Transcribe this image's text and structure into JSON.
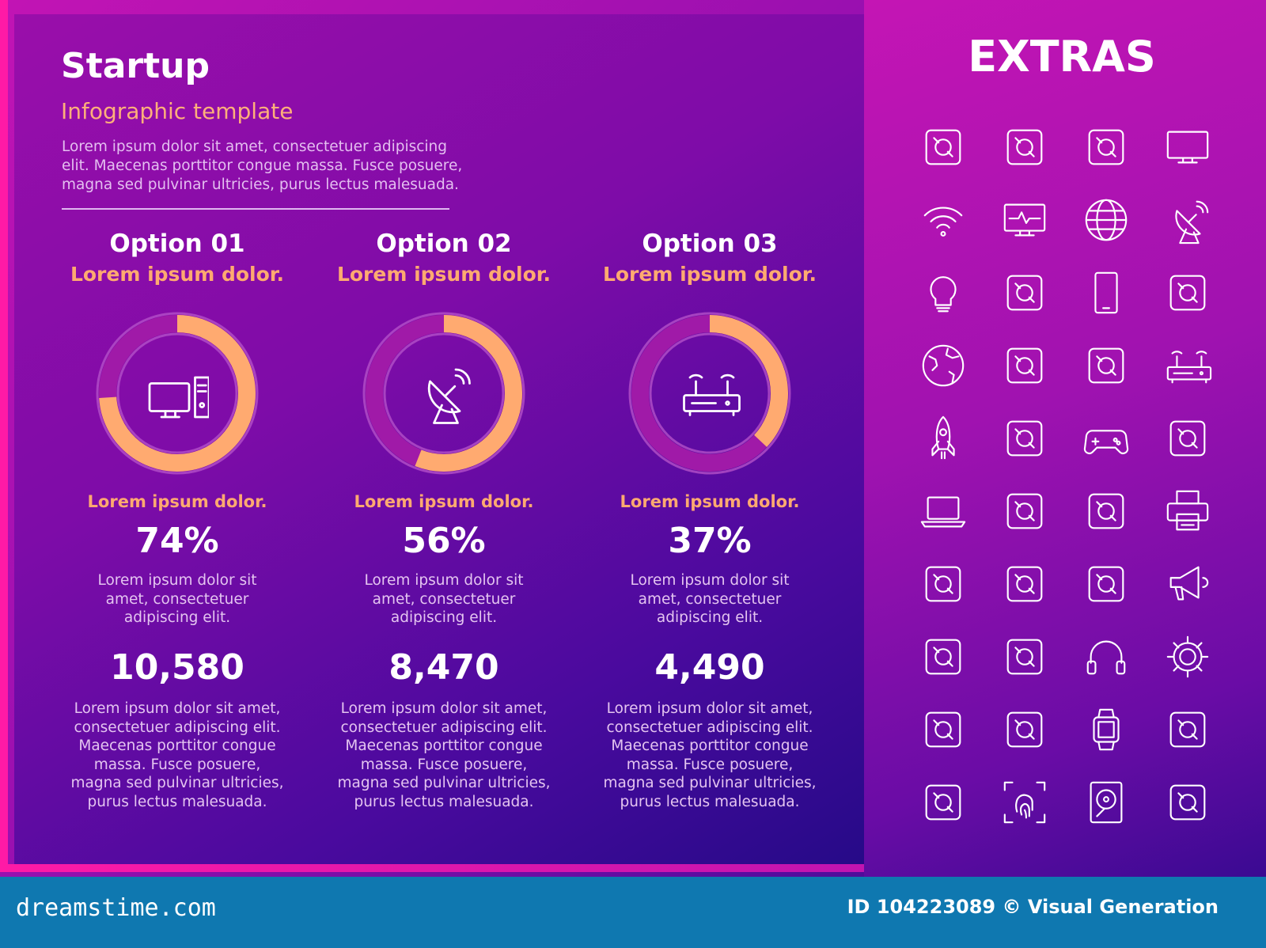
{
  "header": {
    "title": "Startup",
    "subtitle": "Infographic template",
    "intro": "Lorem ipsum dolor sit amet, consectetuer adipiscing elit. Maecenas porttitor congue massa. Fusce posuere, magna sed pulvinar ultricies, purus lectus malesuada."
  },
  "options": [
    {
      "title": "Option 01",
      "subtitle": "Lorem ipsum dolor.",
      "icon": "desktop-computer",
      "percent_value": 74,
      "label": "Lorem ipsum dolor.",
      "percent": "74%",
      "desc": "Lorem ipsum dolor sit amet, consectetuer adipiscing elit.",
      "number": "10,580",
      "paragraph": "Lorem ipsum dolor sit amet, consectetuer adipiscing elit. Maecenas porttitor congue massa. Fusce posuere, magna sed pulvinar ultricies, purus lectus malesuada."
    },
    {
      "title": "Option 02",
      "subtitle": "Lorem ipsum dolor.",
      "icon": "satellite-dish",
      "percent_value": 56,
      "label": "Lorem ipsum dolor.",
      "percent": "56%",
      "desc": "Lorem ipsum dolor sit amet, consectetuer adipiscing elit.",
      "number": "8,470",
      "paragraph": "Lorem ipsum dolor sit amet, consectetuer adipiscing elit. Maecenas porttitor congue massa. Fusce posuere, magna sed pulvinar ultricies, purus lectus malesuada."
    },
    {
      "title": "Option 03",
      "subtitle": "Lorem ipsum dolor.",
      "icon": "router",
      "percent_value": 37,
      "label": "Lorem ipsum dolor.",
      "percent": "37%",
      "desc": "Lorem ipsum dolor sit amet, consectetuer adipiscing elit.",
      "number": "4,490",
      "paragraph": "Lorem ipsum dolor sit amet, consectetuer adipiscing elit. Maecenas porttitor congue massa. Fusce posuere, magna sed pulvinar ultricies, purus lectus malesuada."
    }
  ],
  "extras": {
    "title": "EXTRAS",
    "icons": [
      "devices",
      "smartphone-wifi",
      "chip",
      "monitor",
      "wifi",
      "monitor-pulse",
      "globe-www",
      "satellite-dish",
      "lightbulb",
      "cloud-phone",
      "smartphone",
      "molecule",
      "earth",
      "phone-vibrate",
      "game-console",
      "router",
      "rocket",
      "touch-screen",
      "gamepad",
      "projector",
      "laptop",
      "device-sync",
      "satellite",
      "printer",
      "vr-user",
      "cloud-monitor",
      "rocket-launch",
      "megaphone",
      "vr-headset",
      "hand-phone",
      "headphones",
      "gear",
      "smartwatch-hand",
      "touch-phone",
      "smartwatch",
      "drone",
      "robot-hand",
      "fingerprint",
      "hard-drive",
      "3d-printer"
    ]
  },
  "colors": {
    "accent": "#ffaa70",
    "track": "#b040c0",
    "footer": "#0f78b0"
  },
  "footer": {
    "logo": "dreamstime.com",
    "credit": "ID 104223089 © Visual Generation"
  }
}
